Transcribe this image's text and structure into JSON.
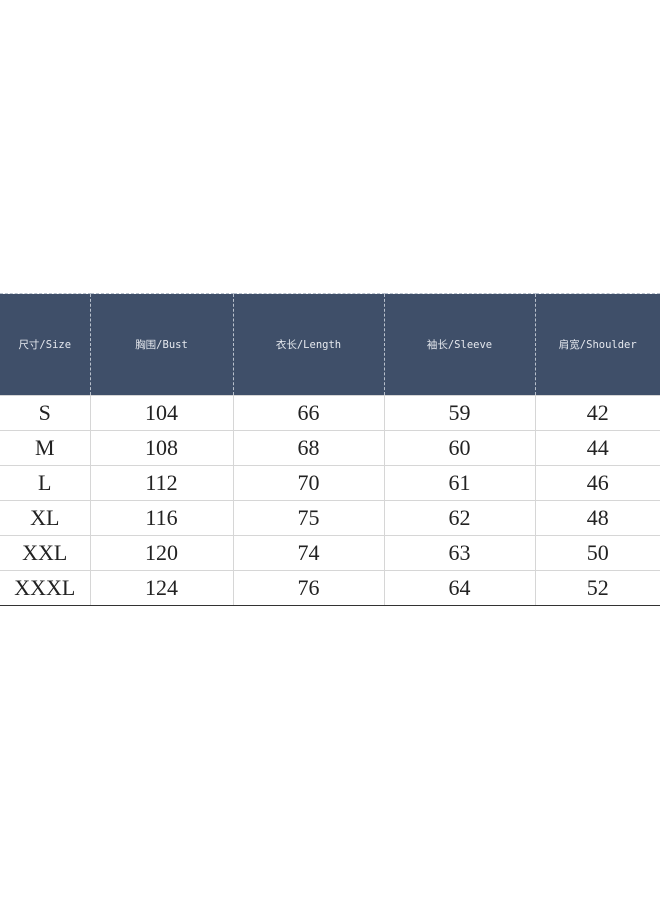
{
  "table": {
    "header_color": "#3f4f69",
    "columns": [
      "尺寸/Size",
      "胸围/Bust",
      "衣长/Length",
      "袖长/Sleeve",
      "肩宽/Shoulder"
    ],
    "rows": [
      [
        "S",
        "104",
        "66",
        "59",
        "42"
      ],
      [
        "M",
        "108",
        "68",
        "60",
        "44"
      ],
      [
        "L",
        "112",
        "70",
        "61",
        "46"
      ],
      [
        "XL",
        "116",
        "75",
        "62",
        "48"
      ],
      [
        "XXL",
        "120",
        "74",
        "63",
        "50"
      ],
      [
        "XXXL",
        "124",
        "76",
        "64",
        "52"
      ]
    ]
  }
}
